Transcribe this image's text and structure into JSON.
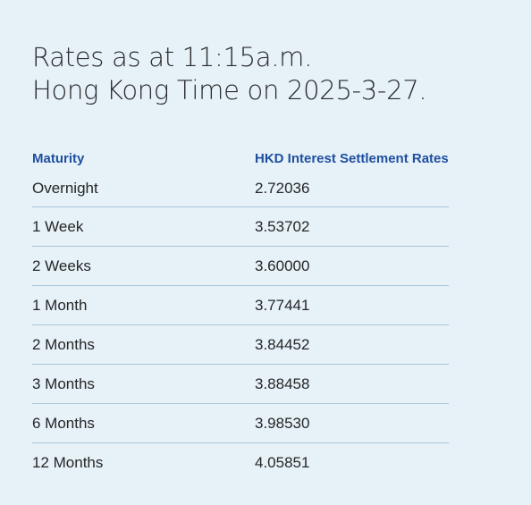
{
  "header": {
    "title_line1": "Rates as at 11:15a.m.",
    "title_line2": "Hong Kong Time on 2025-3-27."
  },
  "table": {
    "columns": [
      "Maturity",
      "HKD Interest Settlement Rates"
    ],
    "rows": [
      {
        "maturity": "Overnight",
        "rate": "2.72036"
      },
      {
        "maturity": "1 Week",
        "rate": "3.53702"
      },
      {
        "maturity": "2 Weeks",
        "rate": "3.60000"
      },
      {
        "maturity": "1 Month",
        "rate": "3.77441"
      },
      {
        "maturity": "2 Months",
        "rate": "3.84452"
      },
      {
        "maturity": "3 Months",
        "rate": "3.88458"
      },
      {
        "maturity": "6 Months",
        "rate": "3.98530"
      },
      {
        "maturity": "12 Months",
        "rate": "4.05851"
      }
    ]
  },
  "colors": {
    "background": "#e6f1f8",
    "header_text": "#1f4fa0",
    "row_divider": "#a9c6da"
  }
}
